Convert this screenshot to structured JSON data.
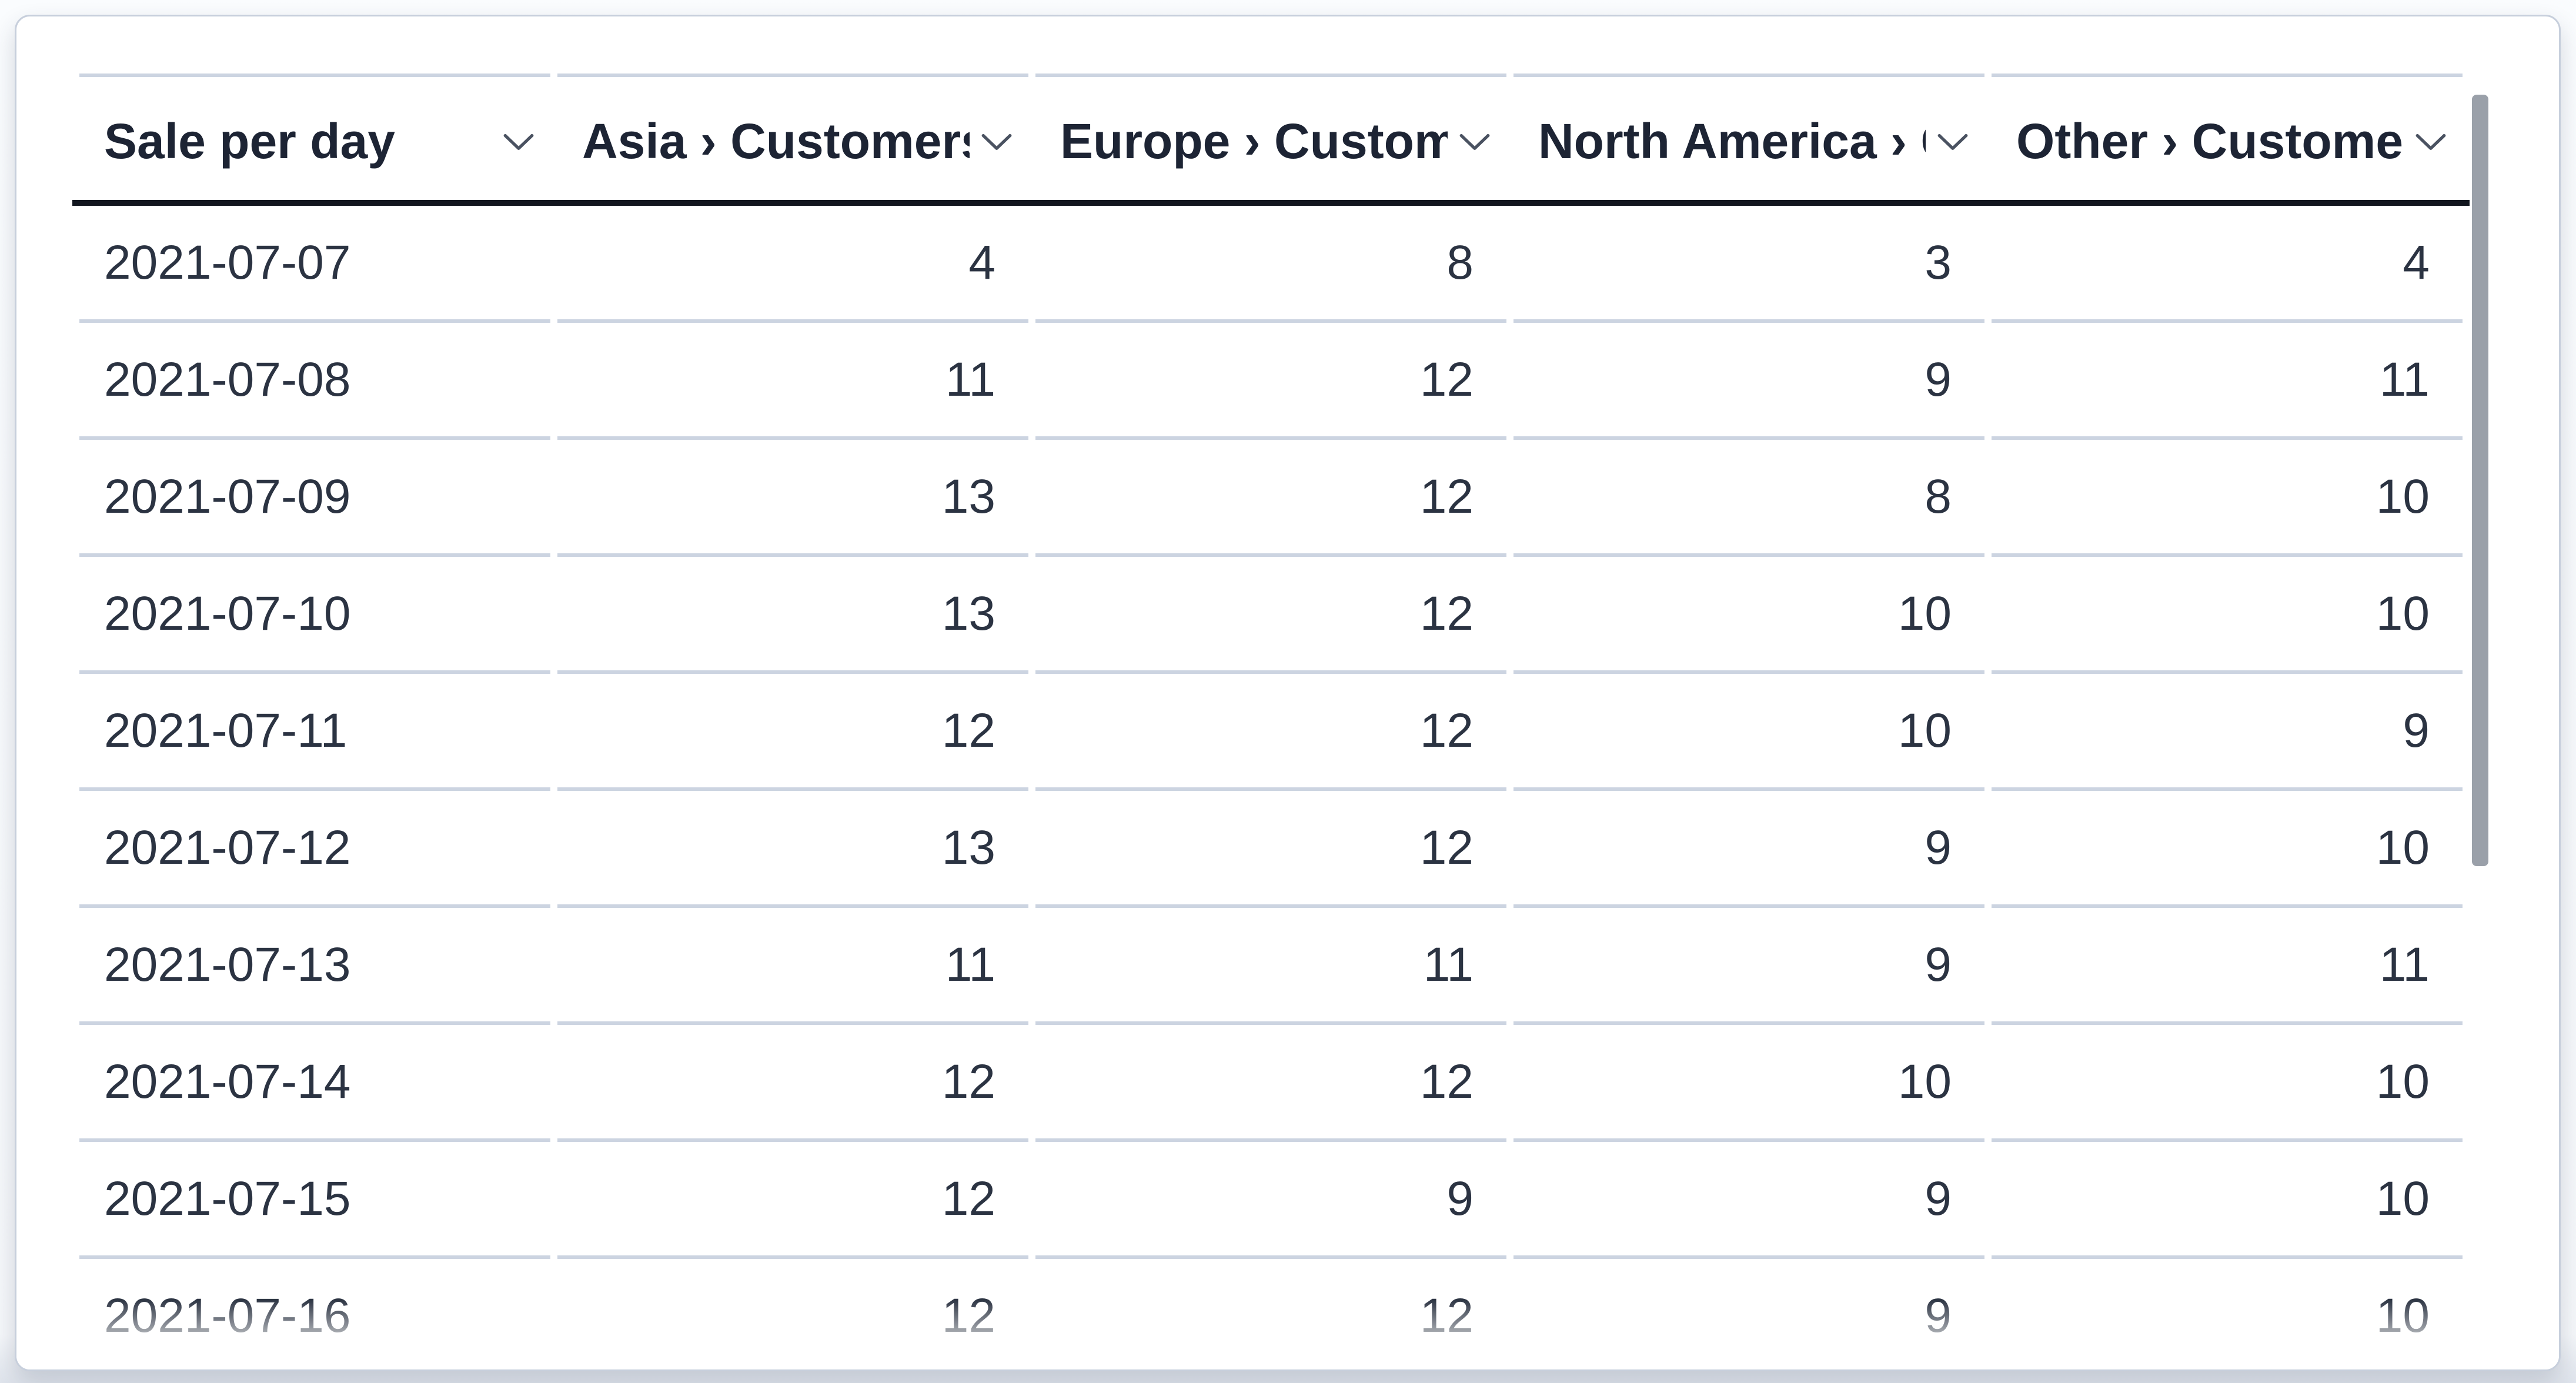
{
  "chart_data": {
    "type": "table",
    "columns": [
      "Sale per day",
      "Asia › Customers",
      "Europe › Customers",
      "North America › Customers",
      "Other › Customers"
    ],
    "rows": [
      [
        "2021-07-07",
        "4",
        "8",
        "3",
        "4"
      ],
      [
        "2021-07-08",
        "11",
        "12",
        "9",
        "11"
      ],
      [
        "2021-07-09",
        "13",
        "12",
        "8",
        "10"
      ],
      [
        "2021-07-10",
        "13",
        "12",
        "10",
        "10"
      ],
      [
        "2021-07-11",
        "12",
        "12",
        "10",
        "9"
      ],
      [
        "2021-07-12",
        "13",
        "12",
        "9",
        "10"
      ],
      [
        "2021-07-13",
        "11",
        "11",
        "9",
        "11"
      ],
      [
        "2021-07-14",
        "12",
        "12",
        "10",
        "10"
      ],
      [
        "2021-07-15",
        "12",
        "9",
        "9",
        "10"
      ],
      [
        "2021-07-16",
        "12",
        "12",
        "9",
        "10"
      ]
    ]
  },
  "ui": {
    "icons": {
      "column_sort": "chevron-down"
    },
    "scrollbar": {
      "orientation": "vertical"
    },
    "colors": {
      "header_text": "#1d2434",
      "body_text": "#2b3342",
      "header_underline": "#12161f",
      "row_separator": "#ccd4e1",
      "card_border": "#c7cfdc",
      "card_background": "#ffffff",
      "scrollbar_thumb": "#9aa0a9",
      "page_background": "#f8fafc"
    }
  }
}
